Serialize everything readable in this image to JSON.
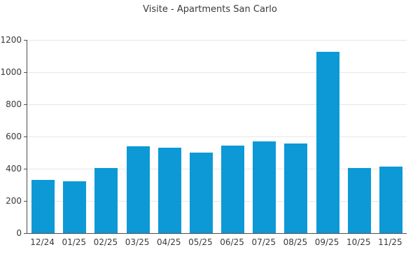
{
  "chart_data": {
    "type": "bar",
    "title": "Visite - Apartments San Carlo",
    "categories": [
      "12/24",
      "01/25",
      "02/25",
      "03/25",
      "04/25",
      "05/25",
      "06/25",
      "07/25",
      "08/25",
      "09/25",
      "10/25",
      "11/25"
    ],
    "values": [
      330,
      320,
      405,
      540,
      530,
      500,
      545,
      570,
      555,
      1125,
      405,
      415
    ],
    "xlabel": "",
    "ylabel": "",
    "ylim": [
      0,
      1200
    ],
    "yticks": [
      0,
      200,
      400,
      600,
      800,
      1000,
      1200
    ],
    "grid": true,
    "legend_position": "none",
    "bar_color": "#0d99d6",
    "axis_color": "#4d4d4d",
    "grid_color": "#e6e6e6",
    "text_color": "#3a3a3a",
    "background_color": "#ffffff"
  }
}
